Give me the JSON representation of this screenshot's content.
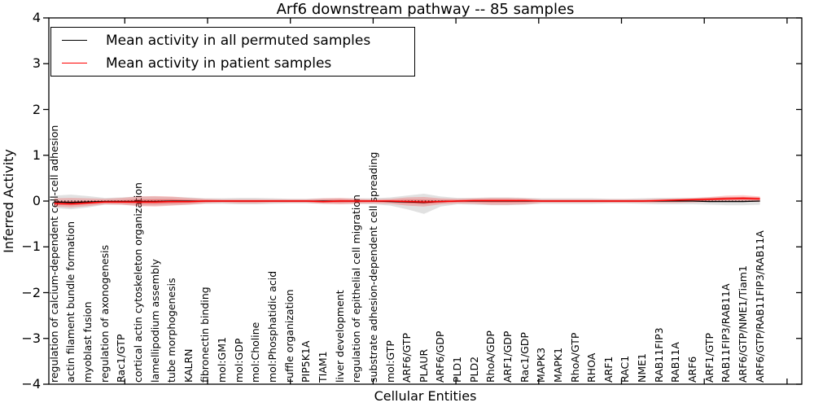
{
  "title": "Arf6 downstream pathway -- 85 samples",
  "legend": {
    "items": [
      {
        "label": "Mean activity in all permuted samples",
        "color": "#000000"
      },
      {
        "label": "Mean activity in patient samples",
        "color": "#ff0000"
      }
    ]
  },
  "axes": {
    "ylabel": "Inferred Activity",
    "xlabel": "Cellular Entities",
    "ytick_labels": [
      "4",
      "3",
      "2",
      "1",
      "0",
      "−1",
      "−2",
      "−3",
      "−4"
    ]
  },
  "colors": {
    "permuted_line": "#000000",
    "patient_line": "#ff0000",
    "permuted_band": "rgba(120,120,120,0.22)",
    "patient_band_outer": "rgba(255,0,0,0.20)",
    "patient_band_inner": "rgba(255,0,0,0.30)",
    "frame": "#000000"
  },
  "chart_data": {
    "type": "line",
    "title": "Arf6 downstream pathway -- 85 samples",
    "xlabel": "Cellular Entities",
    "ylabel": "Inferred Activity",
    "ylim": [
      -4,
      4
    ],
    "yticks": [
      4,
      3,
      2,
      1,
      0,
      -1,
      -2,
      -3,
      -4
    ],
    "grid": false,
    "legend_position": "upper left",
    "zero_reference_line": 0,
    "categories": [
      "regulation of calcium-dependent cell-cell adhesion",
      "actin filament bundle formation",
      "myoblast fusion",
      "regulation of axonogenesis",
      "Rac1/GTP",
      "cortical actin cytoskeleton organization",
      "lamellipodium assembly",
      "tube morphogenesis",
      "KALRN",
      "fibronectin binding",
      "mol:GM1",
      "mol:GDP",
      "mol:Choline",
      "mol:Phosphatidic acid",
      "ruffle organization",
      "PIP5K1A",
      "TIAM1",
      "liver development",
      "regulation of epithelial cell migration",
      "substrate adhesion-dependent cell spreading",
      "mol:GTP",
      "ARF6/GTP",
      "PLAUR",
      "ARF6/GDP",
      "PLD1",
      "PLD2",
      "RhoA/GDP",
      "ARF1/GDP",
      "Rac1/GDP",
      "MAPK3",
      "MAPK1",
      "RhoA/GTP",
      "RHOA",
      "ARF1",
      "RAC1",
      "NME1",
      "RAB11FIP3",
      "RAB11A",
      "ARF6",
      "ARF1/GTP",
      "RAB11FIP3/RAB11A",
      "ARF6/GTP/NME1/Tiam1",
      "ARF6/GTP/RAB11FIP3/RAB11A"
    ],
    "series": [
      {
        "name": "Mean activity in all permuted samples",
        "color": "#000000",
        "values": [
          -0.02,
          -0.03,
          -0.02,
          -0.01,
          -0.01,
          -0.01,
          -0.01,
          0,
          0,
          0,
          0,
          0,
          0,
          0,
          0,
          0,
          0,
          0,
          0,
          0,
          -0.01,
          -0.02,
          -0.03,
          -0.01,
          0,
          0,
          0,
          0,
          0,
          0,
          0,
          0,
          0,
          0,
          0,
          0,
          0,
          0,
          0,
          -0.01,
          -0.01,
          -0.01,
          0
        ]
      },
      {
        "name": "Mean activity in patient samples",
        "color": "#ff0000",
        "values": [
          -0.05,
          -0.06,
          -0.04,
          -0.02,
          -0.02,
          -0.02,
          -0.02,
          -0.01,
          -0.01,
          0,
          0,
          0,
          0,
          0,
          0,
          0,
          -0.01,
          0,
          0,
          0,
          0,
          -0.01,
          -0.02,
          -0.01,
          0,
          0.01,
          0.01,
          0.01,
          0.01,
          0,
          0,
          0,
          0,
          0,
          0,
          0,
          0.01,
          0.02,
          0.03,
          0.04,
          0.05,
          0.06,
          0.05
        ]
      }
    ],
    "bands": [
      {
        "name": "permuted samples activity range",
        "upper": [
          0.12,
          0.14,
          0.11,
          0.07,
          0.08,
          0.1,
          0.1,
          0.09,
          0.08,
          0.06,
          0.06,
          0.07,
          0.07,
          0.06,
          0.05,
          0.05,
          0.06,
          0.06,
          0.06,
          0.06,
          0.08,
          0.12,
          0.16,
          0.1,
          0.07,
          0.07,
          0.08,
          0.08,
          0.07,
          0.06,
          0.06,
          0.06,
          0.06,
          0.05,
          0.05,
          0.06,
          0.07,
          0.07,
          0.07,
          0.08,
          0.09,
          0.09,
          0.08
        ],
        "lower": [
          -0.15,
          -0.18,
          -0.14,
          -0.08,
          -0.08,
          -0.1,
          -0.1,
          -0.09,
          -0.08,
          -0.06,
          -0.06,
          -0.07,
          -0.07,
          -0.06,
          -0.05,
          -0.05,
          -0.06,
          -0.06,
          -0.06,
          -0.07,
          -0.1,
          -0.18,
          -0.28,
          -0.12,
          -0.07,
          -0.08,
          -0.09,
          -0.09,
          -0.08,
          -0.06,
          -0.06,
          -0.06,
          -0.06,
          -0.05,
          -0.05,
          -0.06,
          -0.07,
          -0.07,
          -0.07,
          -0.08,
          -0.09,
          -0.09,
          -0.08
        ]
      },
      {
        "name": "patient samples activity range",
        "upper": [
          0.06,
          0.07,
          0.06,
          0.05,
          0.07,
          0.1,
          0.11,
          0.1,
          0.07,
          0.05,
          0.04,
          0.04,
          0.04,
          0.04,
          0.04,
          0.04,
          0.06,
          0.07,
          0.05,
          0.04,
          0.05,
          0.08,
          0.09,
          0.06,
          0.05,
          0.06,
          0.07,
          0.07,
          0.06,
          0.04,
          0.04,
          0.04,
          0.04,
          0.04,
          0.04,
          0.04,
          0.05,
          0.06,
          0.07,
          0.09,
          0.12,
          0.13,
          0.1
        ],
        "lower": [
          -0.12,
          -0.14,
          -0.11,
          -0.07,
          -0.08,
          -0.11,
          -0.12,
          -0.1,
          -0.08,
          -0.05,
          -0.04,
          -0.05,
          -0.05,
          -0.04,
          -0.04,
          -0.04,
          -0.06,
          -0.07,
          -0.06,
          -0.05,
          -0.06,
          -0.1,
          -0.12,
          -0.07,
          -0.05,
          -0.06,
          -0.08,
          -0.08,
          -0.07,
          -0.04,
          -0.04,
          -0.04,
          -0.04,
          -0.04,
          -0.04,
          -0.04,
          -0.04,
          -0.04,
          -0.03,
          -0.02,
          -0.01,
          -0.01,
          -0.02
        ]
      }
    ]
  }
}
